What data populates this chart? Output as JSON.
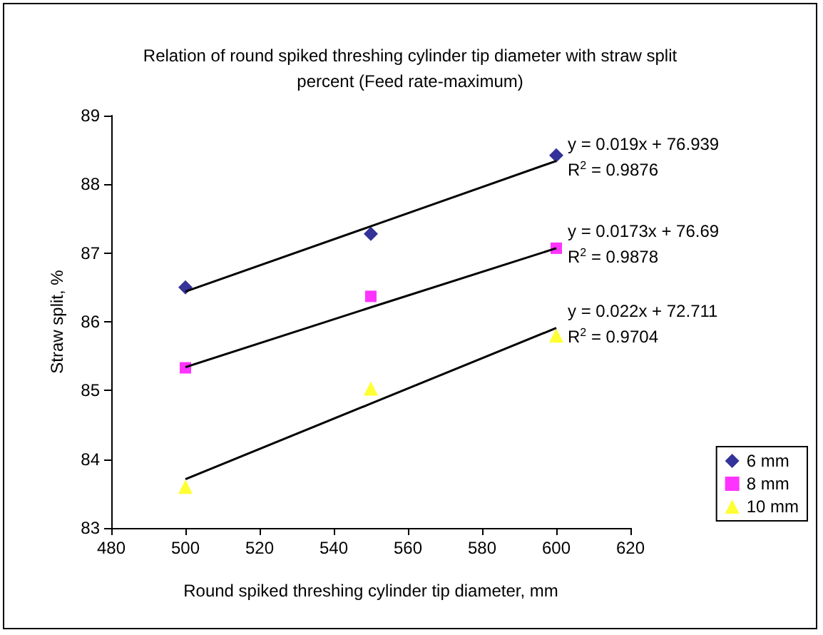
{
  "chart_data": {
    "type": "scatter",
    "title": "Relation of round spiked threshing cylinder tip diameter with straw split\npercent (Feed rate-maximum)",
    "xlabel": "Round spiked threshing cylinder tip diameter, mm",
    "ylabel": "Straw split, %",
    "x": [
      500,
      550,
      600
    ],
    "series": [
      {
        "name": "6 mm",
        "color": "#000080",
        "marker": "diamond",
        "values": [
          86.5,
          87.28,
          88.42
        ]
      },
      {
        "name": "8 mm",
        "color": "#ff00ff",
        "marker": "square",
        "values": [
          85.33,
          86.37,
          87.07
        ]
      },
      {
        "name": "10 mm",
        "color": "#ffff00",
        "marker": "triangle",
        "values": [
          83.6,
          85.03,
          85.8
        ]
      },
      {
        "type": "line",
        "color": "#000000",
        "marker": "none",
        "values": [
          86.44,
          87.39,
          88.34
        ]
      },
      {
        "type": "line",
        "color": "#000000",
        "marker": "none",
        "values": [
          85.34,
          86.21,
          87.07
        ]
      },
      {
        "type": "line",
        "color": "#000000",
        "marker": "none",
        "values": [
          83.71,
          84.81,
          85.91
        ]
      }
    ],
    "xlim": [
      480,
      620
    ],
    "xticks": [
      480,
      500,
      520,
      540,
      560,
      580,
      600,
      620
    ],
    "ylim": [
      83,
      89
    ],
    "yticks": [
      83,
      84,
      85,
      86,
      87,
      88,
      89
    ],
    "grid": false,
    "legend": "bottom right",
    "annotations": [
      "y = 0.019x + 76.939",
      "R$^{2}$ = 0.9876",
      "y = 0.0173x + 76.69",
      "R$^{2}$ = 0.9878",
      "y = 0.022x + 72.711",
      "R$^{2}$ = 0.9704"
    ]
  }
}
